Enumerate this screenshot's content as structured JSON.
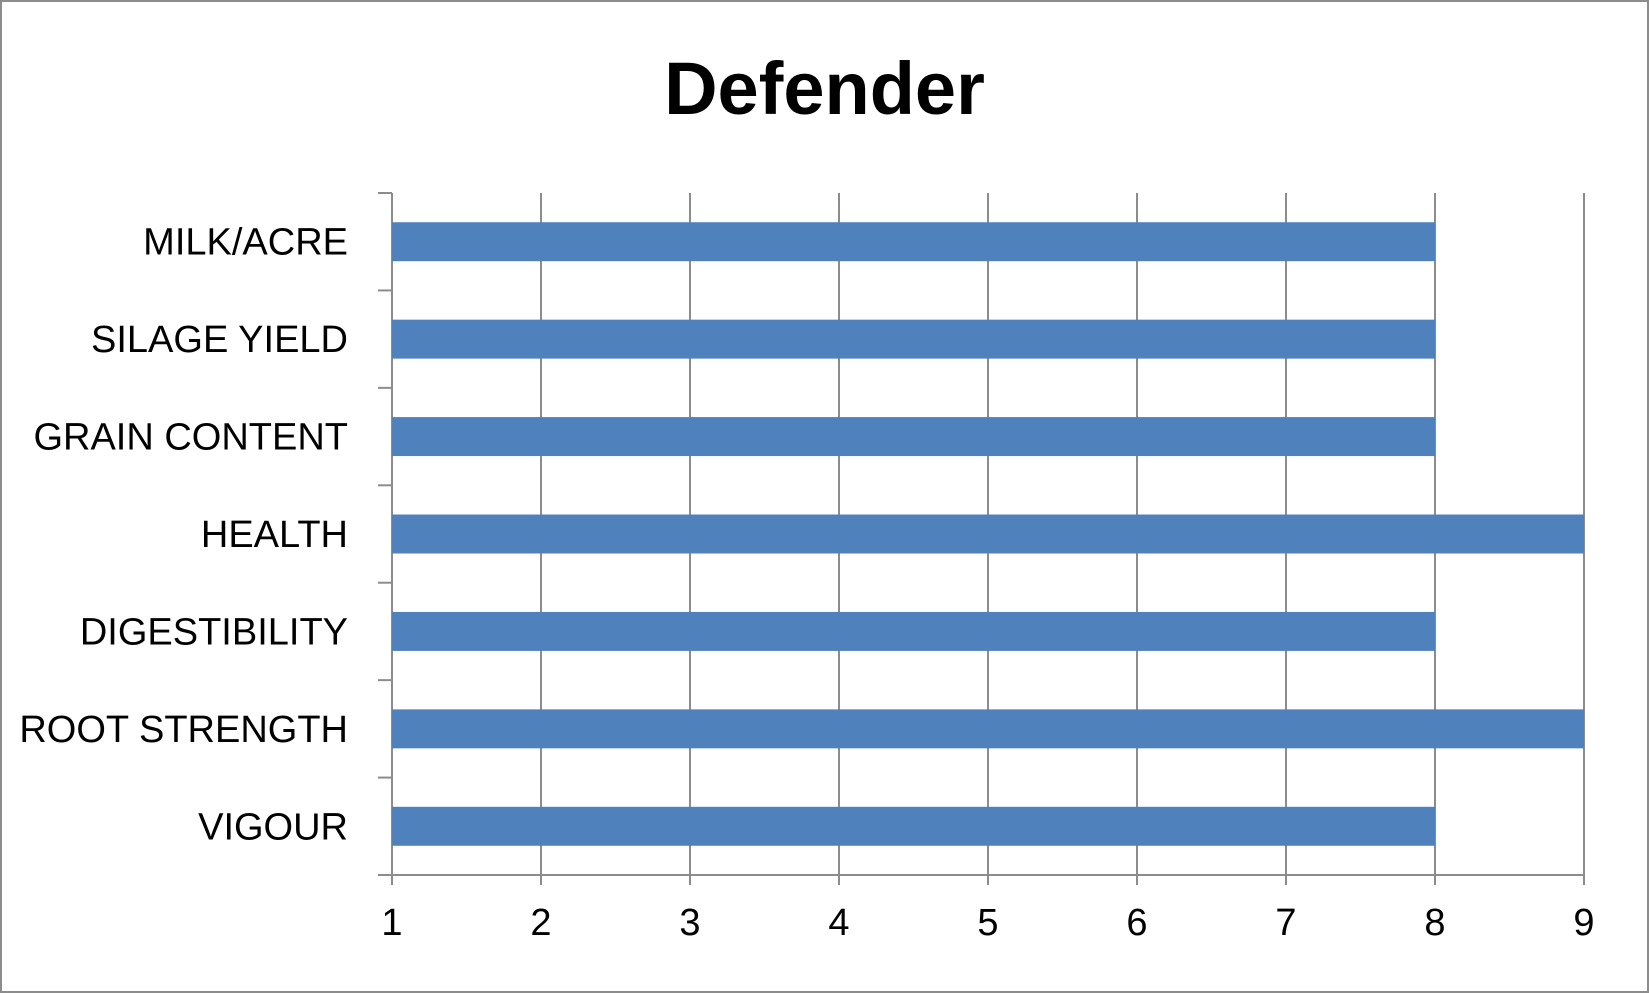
{
  "chart_data": {
    "type": "bar",
    "orientation": "horizontal",
    "title": "Defender",
    "xlabel": "",
    "ylabel": "",
    "categories": [
      "MILK/ACRE",
      "SILAGE YIELD",
      "GRAIN CONTENT",
      "HEALTH",
      "DIGESTIBILITY",
      "ROOT STRENGTH",
      "VIGOUR"
    ],
    "values": [
      8,
      8,
      8,
      9,
      8,
      9,
      8
    ],
    "xlim": [
      1,
      9
    ],
    "xticks": [
      "1",
      "2",
      "3",
      "4",
      "5",
      "6",
      "7",
      "8",
      "9"
    ],
    "grid": "vertical",
    "legend": "none",
    "bar_color": "#4F81BD",
    "grid_color": "#8c8c8c"
  }
}
